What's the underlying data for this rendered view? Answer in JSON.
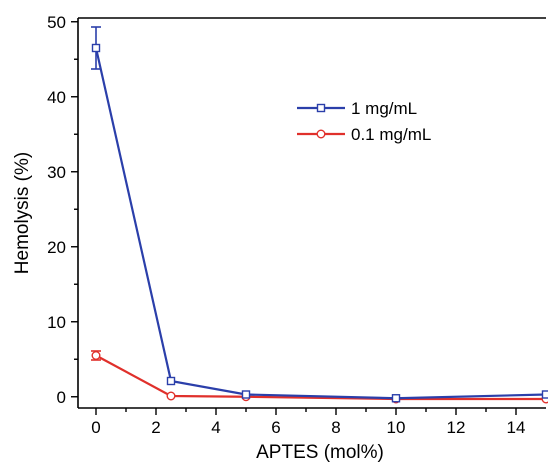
{
  "chart_data": {
    "type": "line",
    "xlabel": "APTES (mol%)",
    "ylabel": "Hemolysis (%)",
    "xlim": [
      -0.6,
      15
    ],
    "ylim": [
      -1.5,
      50.5
    ],
    "xticks": [
      0,
      2,
      4,
      6,
      8,
      10,
      12,
      14
    ],
    "xticks_minor": [
      1,
      3,
      5,
      7,
      9,
      11,
      13
    ],
    "yticks": [
      0,
      10,
      20,
      30,
      40,
      50
    ],
    "yticks_minor": [
      5,
      15,
      25,
      35,
      45
    ],
    "grid": false,
    "legend_position": "upper-right",
    "series": [
      {
        "name": "1 mg/mL",
        "color": "#2b3faa",
        "marker": "square",
        "x": [
          0,
          2.5,
          5,
          10,
          15
        ],
        "y": [
          46.5,
          2.1,
          0.3,
          -0.2,
          0.3
        ],
        "error": [
          2.8,
          0.3,
          0.2,
          0.2,
          0.2
        ]
      },
      {
        "name": "0.1 mg/mL",
        "color": "#e0302b",
        "marker": "circle",
        "x": [
          0,
          2.5,
          5,
          10,
          15
        ],
        "y": [
          5.5,
          0.1,
          0.0,
          -0.3,
          -0.3
        ],
        "error": [
          0.6,
          0.2,
          0.2,
          0.2,
          0.2
        ]
      }
    ]
  }
}
